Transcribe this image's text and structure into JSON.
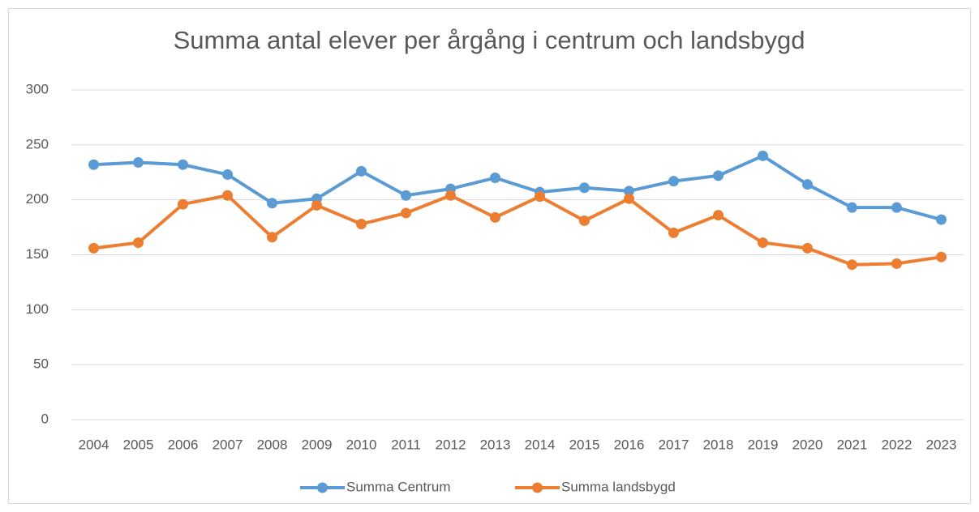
{
  "chart_data": {
    "type": "line",
    "title": "Summa antal elever per årgång i centrum och landsbygd",
    "categories": [
      "2004",
      "2005",
      "2006",
      "2007",
      "2008",
      "2009",
      "2010",
      "2011",
      "2012",
      "2013",
      "2014",
      "2015",
      "2016",
      "2017",
      "2018",
      "2019",
      "2020",
      "2021",
      "2022",
      "2023"
    ],
    "series": [
      {
        "name": "Summa Centrum",
        "color": "#5b9bd5",
        "values": [
          232,
          234,
          232,
          223,
          197,
          201,
          226,
          204,
          210,
          220,
          207,
          211,
          208,
          217,
          222,
          240,
          214,
          193,
          193,
          182
        ]
      },
      {
        "name": "Summa landsbygd",
        "color": "#ed7d31",
        "values": [
          156,
          161,
          196,
          204,
          166,
          195,
          178,
          188,
          204,
          184,
          203,
          181,
          201,
          170,
          186,
          161,
          156,
          141,
          142,
          148
        ]
      }
    ],
    "ylim": [
      0,
      300
    ],
    "yticks": [
      0,
      50,
      100,
      150,
      200,
      250,
      300
    ],
    "grid": true,
    "legend": "bottom"
  }
}
